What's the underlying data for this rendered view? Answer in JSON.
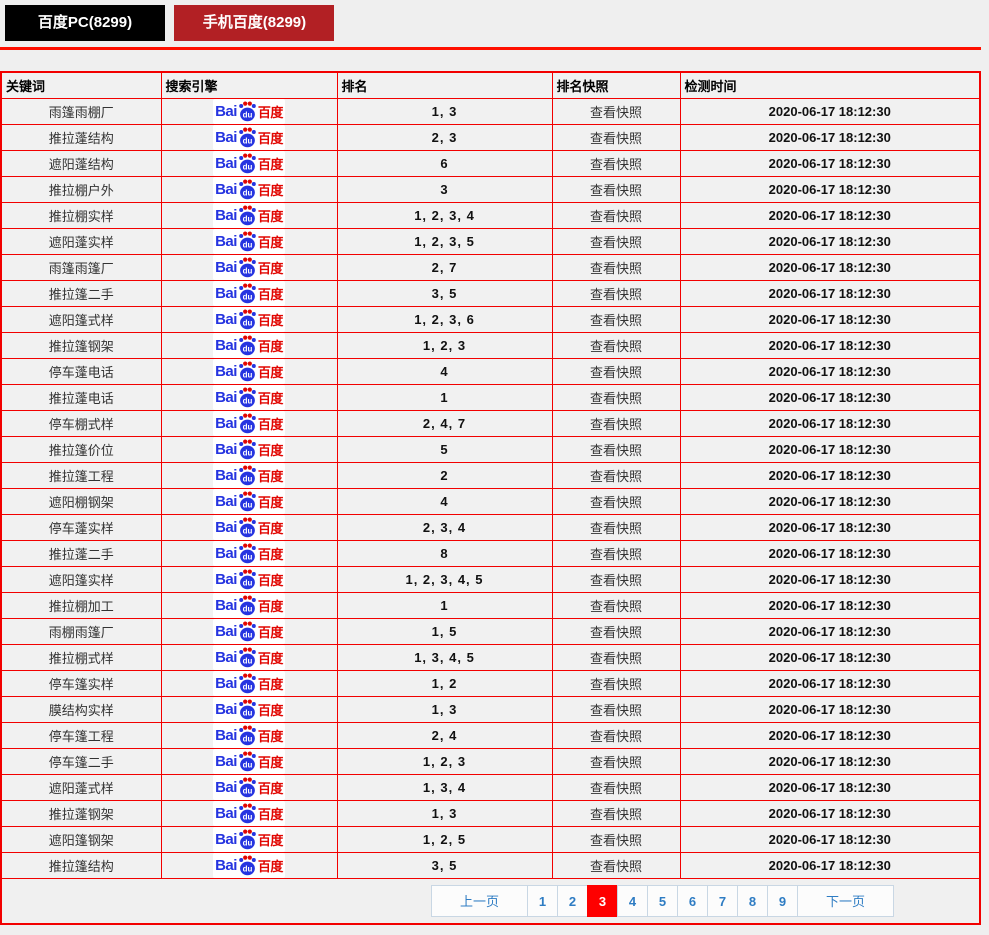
{
  "tabs": [
    {
      "label": "百度PC(8299)"
    },
    {
      "label": "手机百度(8299)"
    }
  ],
  "baidu_logo": {
    "bai": "Bai",
    "du": "du",
    "cn": "百度"
  },
  "colors": {
    "tab_black": "#000000",
    "tab_red": "#b22024",
    "table_border_red": "#f20000",
    "active_page_red": "#fe0000",
    "pagination_blue": "#2e7cc3",
    "baidu_blue": "#2534e0",
    "baidu_red": "#e10602"
  },
  "table": {
    "headers": [
      "关键词",
      "搜索引擎",
      "排名",
      "排名快照",
      "检测时间"
    ]
  },
  "rows": [
    {
      "keyword": "雨篷雨棚厂",
      "rank": "1, 3",
      "snapshot": "查看快照",
      "time": "2020-06-17 18:12:30"
    },
    {
      "keyword": "推拉蓬结构",
      "rank": "2, 3",
      "snapshot": "查看快照",
      "time": "2020-06-17 18:12:30"
    },
    {
      "keyword": "遮阳蓬结构",
      "rank": "6",
      "snapshot": "查看快照",
      "time": "2020-06-17 18:12:30"
    },
    {
      "keyword": "推拉棚户外",
      "rank": "3",
      "snapshot": "查看快照",
      "time": "2020-06-17 18:12:30"
    },
    {
      "keyword": "推拉棚实样",
      "rank": "1, 2, 3, 4",
      "snapshot": "查看快照",
      "time": "2020-06-17 18:12:30"
    },
    {
      "keyword": "遮阳蓬实样",
      "rank": "1, 2, 3, 5",
      "snapshot": "查看快照",
      "time": "2020-06-17 18:12:30"
    },
    {
      "keyword": "雨篷雨篷厂",
      "rank": "2, 7",
      "snapshot": "查看快照",
      "time": "2020-06-17 18:12:30"
    },
    {
      "keyword": "推拉篷二手",
      "rank": "3, 5",
      "snapshot": "查看快照",
      "time": "2020-06-17 18:12:30"
    },
    {
      "keyword": "遮阳篷式样",
      "rank": "1, 2, 3, 6",
      "snapshot": "查看快照",
      "time": "2020-06-17 18:12:30"
    },
    {
      "keyword": "推拉篷钢架",
      "rank": "1, 2, 3",
      "snapshot": "查看快照",
      "time": "2020-06-17 18:12:30"
    },
    {
      "keyword": "停车蓬电话",
      "rank": "4",
      "snapshot": "查看快照",
      "time": "2020-06-17 18:12:30"
    },
    {
      "keyword": "推拉蓬电话",
      "rank": "1",
      "snapshot": "查看快照",
      "time": "2020-06-17 18:12:30"
    },
    {
      "keyword": "停车棚式样",
      "rank": "2, 4, 7",
      "snapshot": "查看快照",
      "time": "2020-06-17 18:12:30"
    },
    {
      "keyword": "推拉篷价位",
      "rank": "5",
      "snapshot": "查看快照",
      "time": "2020-06-17 18:12:30"
    },
    {
      "keyword": "推拉篷工程",
      "rank": "2",
      "snapshot": "查看快照",
      "time": "2020-06-17 18:12:30"
    },
    {
      "keyword": "遮阳棚钢架",
      "rank": "4",
      "snapshot": "查看快照",
      "time": "2020-06-17 18:12:30"
    },
    {
      "keyword": "停车蓬实样",
      "rank": "2, 3, 4",
      "snapshot": "查看快照",
      "time": "2020-06-17 18:12:30"
    },
    {
      "keyword": "推拉蓬二手",
      "rank": "8",
      "snapshot": "查看快照",
      "time": "2020-06-17 18:12:30"
    },
    {
      "keyword": "遮阳篷实样",
      "rank": "1, 2, 3, 4, 5",
      "snapshot": "查看快照",
      "time": "2020-06-17 18:12:30"
    },
    {
      "keyword": "推拉棚加工",
      "rank": "1",
      "snapshot": "查看快照",
      "time": "2020-06-17 18:12:30"
    },
    {
      "keyword": "雨棚雨篷厂",
      "rank": "1, 5",
      "snapshot": "查看快照",
      "time": "2020-06-17 18:12:30"
    },
    {
      "keyword": "推拉棚式样",
      "rank": "1, 3, 4, 5",
      "snapshot": "查看快照",
      "time": "2020-06-17 18:12:30"
    },
    {
      "keyword": "停车篷实样",
      "rank": "1, 2",
      "snapshot": "查看快照",
      "time": "2020-06-17 18:12:30"
    },
    {
      "keyword": "膜结构实样",
      "rank": "1, 3",
      "snapshot": "查看快照",
      "time": "2020-06-17 18:12:30"
    },
    {
      "keyword": "停车篷工程",
      "rank": "2, 4",
      "snapshot": "查看快照",
      "time": "2020-06-17 18:12:30"
    },
    {
      "keyword": "停车篷二手",
      "rank": "1, 2, 3",
      "snapshot": "查看快照",
      "time": "2020-06-17 18:12:30"
    },
    {
      "keyword": "遮阳蓬式样",
      "rank": "1, 3, 4",
      "snapshot": "查看快照",
      "time": "2020-06-17 18:12:30"
    },
    {
      "keyword": "推拉蓬钢架",
      "rank": "1, 3",
      "snapshot": "查看快照",
      "time": "2020-06-17 18:12:30"
    },
    {
      "keyword": "遮阳篷钢架",
      "rank": "1, 2, 5",
      "snapshot": "查看快照",
      "time": "2020-06-17 18:12:30"
    },
    {
      "keyword": "推拉篷结构",
      "rank": "3, 5",
      "snapshot": "查看快照",
      "time": "2020-06-17 18:12:30"
    }
  ],
  "pagination": {
    "prev_label": "上一页",
    "next_label": "下一页",
    "pages": [
      "1",
      "2",
      "3",
      "4",
      "5",
      "6",
      "7",
      "8",
      "9"
    ],
    "active_page": "3"
  }
}
